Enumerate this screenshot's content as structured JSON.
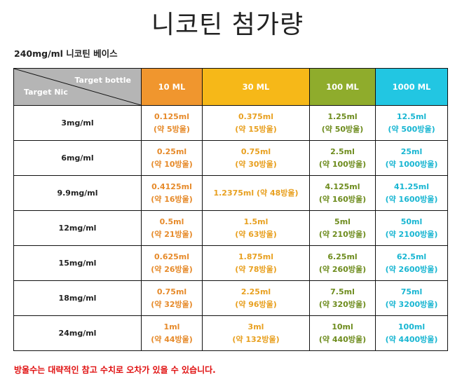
{
  "title": "니코틴 첨가량",
  "subtitle": "240mg/ml 니코틴 베이스",
  "header": {
    "target_bottle": "Target bottle",
    "target_nic": "Target Nic",
    "columns": [
      "10 ML",
      "30 ML",
      "100 ML",
      "1000 ML"
    ]
  },
  "colors": {
    "col10": "#f0962e",
    "col30": "#f6b818",
    "col100": "#8fac2c",
    "col1000": "#22c6e2",
    "note": "#e01010"
  },
  "rows": [
    {
      "label": "3mg/ml",
      "cells": [
        {
          "ml": "0.125ml",
          "drop": "(약 5방울)"
        },
        {
          "ml": "0.375ml",
          "drop": "(약 15방울)"
        },
        {
          "ml": "1.25ml",
          "drop": "(약 50방울)"
        },
        {
          "ml": "12.5ml",
          "drop": "(약 500방울)"
        }
      ]
    },
    {
      "label": "6mg/ml",
      "cells": [
        {
          "ml": "0.25ml",
          "drop": "(약 10방울)"
        },
        {
          "ml": "0.75ml",
          "drop": "(약 30방울)"
        },
        {
          "ml": "2.5ml",
          "drop": "(약 100방울)"
        },
        {
          "ml": "25ml",
          "drop": "(약 1000방울)"
        }
      ]
    },
    {
      "label": "9.9mg/ml",
      "cells": [
        {
          "ml": "0.4125ml",
          "drop": "(약 16방울)"
        },
        {
          "ml": "1.2375ml (약 48방울)",
          "drop": ""
        },
        {
          "ml": "4.125ml",
          "drop": "(약 160방울)"
        },
        {
          "ml": "41.25ml",
          "drop": "(약 1600방울)"
        }
      ]
    },
    {
      "label": "12mg/ml",
      "cells": [
        {
          "ml": "0.5ml",
          "drop": "(약 21방울)"
        },
        {
          "ml": "1.5ml",
          "drop": "(약 63방울)"
        },
        {
          "ml": "5ml",
          "drop": "(약 210방울)"
        },
        {
          "ml": "50ml",
          "drop": "(약 2100방울)"
        }
      ]
    },
    {
      "label": "15mg/ml",
      "cells": [
        {
          "ml": "0.625ml",
          "drop": "(약 26방울)"
        },
        {
          "ml": "1.875ml",
          "drop": "(약 78방울)"
        },
        {
          "ml": "6.25ml",
          "drop": "(약 260방울)"
        },
        {
          "ml": "62.5ml",
          "drop": "(약 2600방울)"
        }
      ]
    },
    {
      "label": "18mg/ml",
      "cells": [
        {
          "ml": "0.75ml",
          "drop": "(약 32방울)"
        },
        {
          "ml": "2.25ml",
          "drop": "(약 96방울)"
        },
        {
          "ml": "7.5ml",
          "drop": "(약 320방울)"
        },
        {
          "ml": "75ml",
          "drop": "(약 3200방울)"
        }
      ]
    },
    {
      "label": "24mg/ml",
      "cells": [
        {
          "ml": "1ml",
          "drop": "(약 44방울)"
        },
        {
          "ml": "3ml",
          "drop": "(약 132방울)"
        },
        {
          "ml": "10ml",
          "drop": "(약 440방울)"
        },
        {
          "ml": "100ml",
          "drop": "(약 4400방울)"
        }
      ]
    }
  ],
  "note": "방울수는 대략적인 참고 수치로 오차가 있을 수 있습니다."
}
